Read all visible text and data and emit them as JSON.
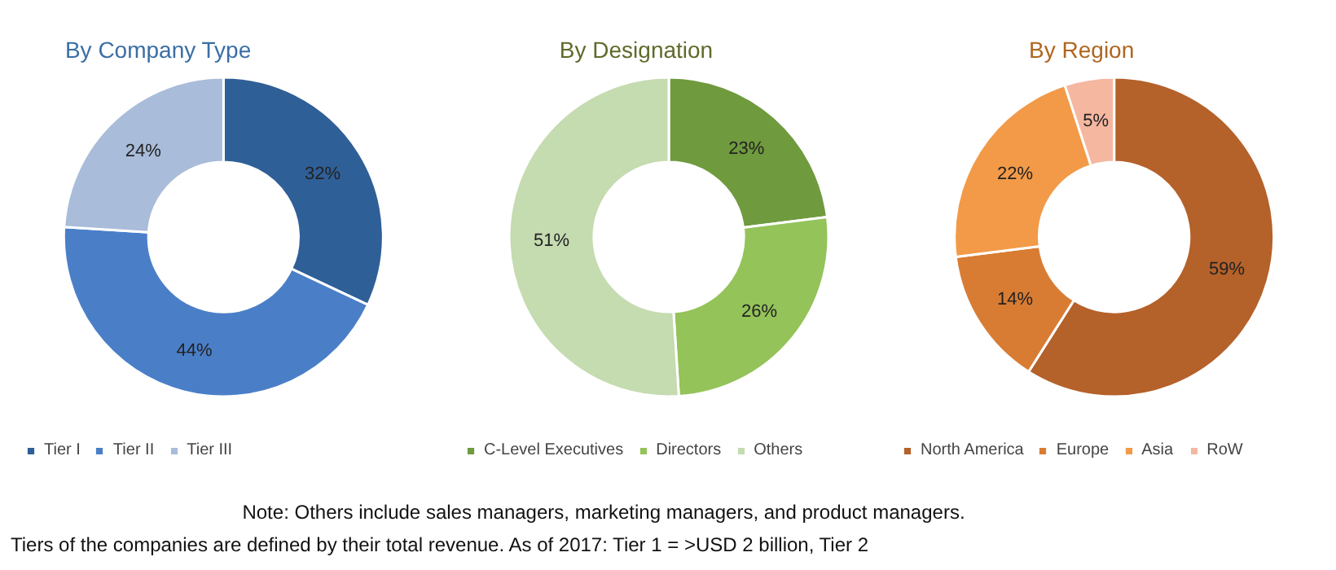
{
  "chart_data": [
    {
      "type": "donut",
      "title": "By Company Type",
      "categories": [
        "Tier I",
        "Tier II",
        "Tier III"
      ],
      "values": [
        32,
        44,
        24
      ],
      "colors": [
        "#2f5f97",
        "#4a7fc8",
        "#a9bcd9"
      ],
      "value_labels": [
        "32%",
        "44%",
        "24%"
      ],
      "legend": "bottom",
      "annotations": [
        "Note: Others include sales managers, marketing managers, and product managers.",
        "Tiers of the companies are defined by their total revenue. As of 2017: Tier 1 = >USD 2 billion, Tier 2"
      ]
    },
    {
      "type": "donut",
      "title": "By Designation",
      "categories": [
        "C-Level Executives",
        "Directors",
        "Others"
      ],
      "values": [
        23,
        26,
        51
      ],
      "colors": [
        "#6f9a3e",
        "#94c35a",
        "#c5dbb0"
      ],
      "value_labels": [
        "23%",
        "26%",
        "51%"
      ],
      "legend": "bottom"
    },
    {
      "type": "donut",
      "title": "By Region",
      "categories": [
        "North America",
        "Europe",
        "Asia",
        "RoW"
      ],
      "values": [
        59,
        14,
        22,
        5
      ],
      "colors": [
        "#b4612a",
        "#d97c33",
        "#f29a48",
        "#f5b7a0"
      ],
      "value_labels": [
        "59%",
        "14%",
        "22%",
        "5%"
      ],
      "legend": "bottom"
    }
  ]
}
